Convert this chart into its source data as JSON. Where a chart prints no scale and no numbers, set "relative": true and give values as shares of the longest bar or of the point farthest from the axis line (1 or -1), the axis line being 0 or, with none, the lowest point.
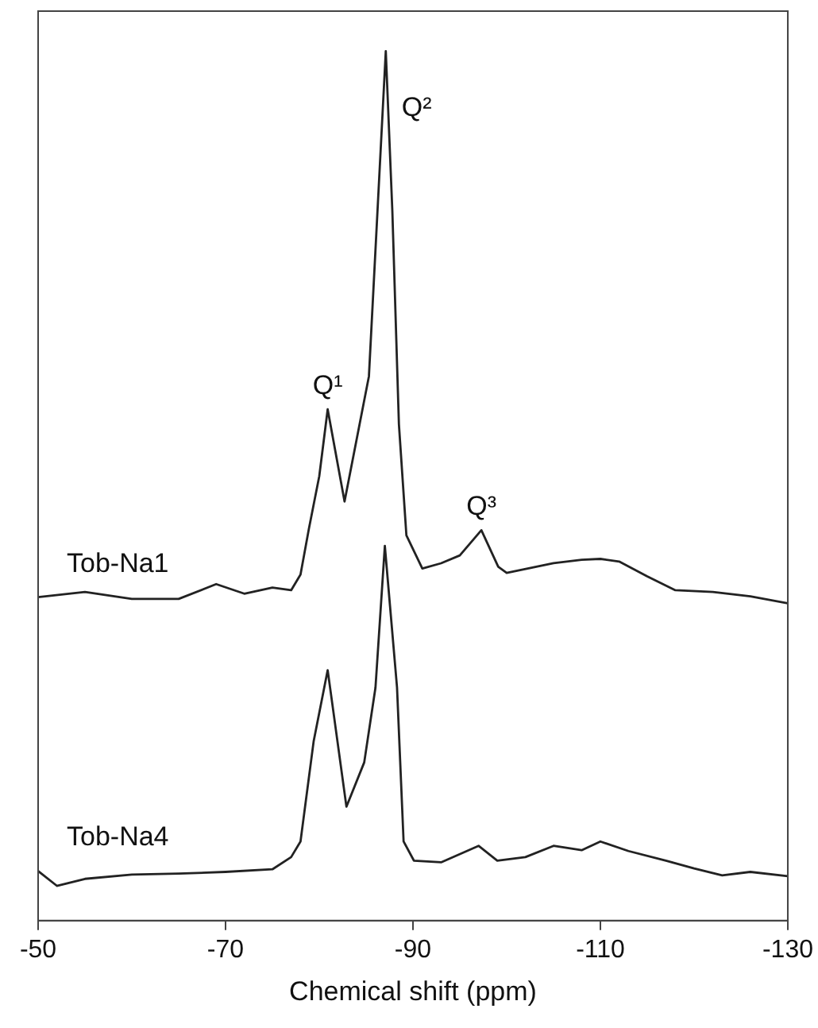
{
  "chart_data": {
    "type": "line",
    "xlabel": "Chemical shift (ppm)",
    "relative": true,
    "xlim": [
      -50,
      -130
    ],
    "xticks": [
      -50,
      -70,
      -90,
      -110,
      -130
    ],
    "grid": false,
    "legend": false,
    "marker": "none",
    "line_style": "solid",
    "annotations": [
      {
        "text": "Q¹",
        "x": -80.9,
        "y": 0.588
      },
      {
        "text": "Q²",
        "x": -87.1,
        "y": 1.0
      },
      {
        "text": "Q³",
        "x": -97.3,
        "y": 0.449
      }
    ],
    "series": [
      {
        "name": "Tob-Na1",
        "color": "#222222",
        "x": [
          -50,
          -55,
          -60,
          -65,
          -69,
          -72,
          -75,
          -77,
          -78,
          -78.9,
          -80,
          -80.9,
          -82.7,
          -85.3,
          -87.1,
          -87.8,
          -88.5,
          -89.3,
          -91,
          -93,
          -95,
          -97.3,
          -99.1,
          -100,
          -105,
          -108,
          -110,
          -112,
          -115,
          -118,
          -122,
          -126,
          -130
        ],
        "values": [
          0.372,
          0.378,
          0.37,
          0.37,
          0.387,
          0.376,
          0.383,
          0.38,
          0.398,
          0.451,
          0.511,
          0.588,
          0.482,
          0.626,
          1.0,
          0.816,
          0.571,
          0.443,
          0.405,
          0.411,
          0.42,
          0.449,
          0.407,
          0.4,
          0.411,
          0.415,
          0.416,
          0.413,
          0.396,
          0.38,
          0.378,
          0.373,
          0.365
        ]
      },
      {
        "name": "Tob-Na4",
        "color": "#222222",
        "x": [
          -50,
          -52,
          -55,
          -60,
          -65,
          -70,
          -75,
          -77,
          -78,
          -79.4,
          -80.9,
          -82.9,
          -84.8,
          -86,
          -87,
          -88.3,
          -89,
          -90.1,
          -93,
          -97,
          -99,
          -102,
          -105,
          -108,
          -110,
          -113,
          -117,
          -120,
          -123,
          -126,
          -130
        ],
        "values": [
          0.057,
          0.04,
          0.048,
          0.053,
          0.054,
          0.056,
          0.059,
          0.073,
          0.091,
          0.206,
          0.288,
          0.131,
          0.182,
          0.268,
          0.431,
          0.268,
          0.091,
          0.069,
          0.067,
          0.086,
          0.069,
          0.073,
          0.086,
          0.081,
          0.091,
          0.08,
          0.069,
          0.06,
          0.052,
          0.056,
          0.051
        ]
      }
    ]
  }
}
